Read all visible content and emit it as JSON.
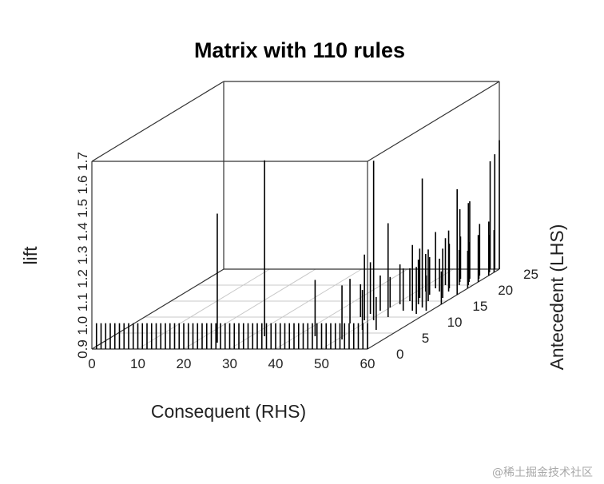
{
  "chart_data": {
    "type": "3d-bar",
    "title": "Matrix with 110 rules",
    "xlabel": "Consequent (RHS)",
    "ylabel": "Antecedent (LHS)",
    "zlabel": "lift",
    "x_ticks": [
      "0",
      "10",
      "20",
      "30",
      "40",
      "50",
      "60"
    ],
    "y_ticks": [
      "0",
      "5",
      "10",
      "15",
      "20",
      "25"
    ],
    "z_ticks": [
      "0.9",
      "1.0",
      "1.1",
      "1.2",
      "1.3",
      "1.4",
      "1.5",
      "1.6",
      "1.7"
    ],
    "xlim": [
      0,
      60
    ],
    "ylim": [
      0,
      25
    ],
    "zlim": [
      0.9,
      1.7
    ],
    "rules": [
      {
        "x": 1,
        "y": 0,
        "lift": 1.01
      },
      {
        "x": 2,
        "y": 0,
        "lift": 1.01
      },
      {
        "x": 3,
        "y": 0,
        "lift": 1.01
      },
      {
        "x": 4,
        "y": 0,
        "lift": 1.01
      },
      {
        "x": 5,
        "y": 0,
        "lift": 1.01
      },
      {
        "x": 6,
        "y": 0,
        "lift": 1.01
      },
      {
        "x": 7,
        "y": 0,
        "lift": 1.01
      },
      {
        "x": 8,
        "y": 0,
        "lift": 1.01
      },
      {
        "x": 9,
        "y": 0,
        "lift": 1.01
      },
      {
        "x": 10,
        "y": 0,
        "lift": 1.01
      },
      {
        "x": 11,
        "y": 0,
        "lift": 1.01
      },
      {
        "x": 12,
        "y": 0,
        "lift": 1.01
      },
      {
        "x": 13,
        "y": 0,
        "lift": 1.01
      },
      {
        "x": 14,
        "y": 0,
        "lift": 1.01
      },
      {
        "x": 15,
        "y": 0,
        "lift": 1.01
      },
      {
        "x": 16,
        "y": 0,
        "lift": 1.01
      },
      {
        "x": 17,
        "y": 0,
        "lift": 1.01
      },
      {
        "x": 18,
        "y": 0,
        "lift": 1.01
      },
      {
        "x": 19,
        "y": 0,
        "lift": 1.01
      },
      {
        "x": 20,
        "y": 0,
        "lift": 1.01
      },
      {
        "x": 21,
        "y": 0,
        "lift": 1.01
      },
      {
        "x": 22,
        "y": 0,
        "lift": 1.01
      },
      {
        "x": 23,
        "y": 0,
        "lift": 1.01
      },
      {
        "x": 24,
        "y": 0,
        "lift": 1.01
      },
      {
        "x": 25,
        "y": 0,
        "lift": 1.01
      },
      {
        "x": 26,
        "y": 0,
        "lift": 1.01
      },
      {
        "x": 27,
        "y": 0,
        "lift": 1.01
      },
      {
        "x": 28,
        "y": 0,
        "lift": 1.01
      },
      {
        "x": 29,
        "y": 0,
        "lift": 1.01
      },
      {
        "x": 30,
        "y": 0,
        "lift": 1.01
      },
      {
        "x": 31,
        "y": 0,
        "lift": 1.01
      },
      {
        "x": 32,
        "y": 0,
        "lift": 1.01
      },
      {
        "x": 33,
        "y": 0,
        "lift": 1.01
      },
      {
        "x": 34,
        "y": 0,
        "lift": 1.01
      },
      {
        "x": 35,
        "y": 0,
        "lift": 1.01
      },
      {
        "x": 36,
        "y": 0,
        "lift": 1.01
      },
      {
        "x": 37,
        "y": 0,
        "lift": 1.01
      },
      {
        "x": 38,
        "y": 0,
        "lift": 1.01
      },
      {
        "x": 39,
        "y": 0,
        "lift": 1.01
      },
      {
        "x": 40,
        "y": 0,
        "lift": 1.01
      },
      {
        "x": 41,
        "y": 0,
        "lift": 1.01
      },
      {
        "x": 42,
        "y": 0,
        "lift": 1.01
      },
      {
        "x": 43,
        "y": 0,
        "lift": 1.01
      },
      {
        "x": 44,
        "y": 0,
        "lift": 1.01
      },
      {
        "x": 45,
        "y": 0,
        "lift": 1.01
      },
      {
        "x": 46,
        "y": 0,
        "lift": 1.01
      },
      {
        "x": 47,
        "y": 0,
        "lift": 1.01
      },
      {
        "x": 48,
        "y": 0,
        "lift": 1.01
      },
      {
        "x": 49,
        "y": 0,
        "lift": 1.01
      },
      {
        "x": 50,
        "y": 0,
        "lift": 1.01
      },
      {
        "x": 51,
        "y": 0,
        "lift": 1.01
      },
      {
        "x": 52,
        "y": 0,
        "lift": 1.01
      },
      {
        "x": 53,
        "y": 0,
        "lift": 1.01
      },
      {
        "x": 54,
        "y": 0,
        "lift": 1.01
      },
      {
        "x": 55,
        "y": 0,
        "lift": 1.01
      },
      {
        "x": 56,
        "y": 0,
        "lift": 1.01
      },
      {
        "x": 57,
        "y": 0,
        "lift": 1.01
      },
      {
        "x": 58,
        "y": 0,
        "lift": 1.01
      },
      {
        "x": 59,
        "y": 0,
        "lift": 1.01
      },
      {
        "x": 60,
        "y": 0,
        "lift": 1.01
      },
      {
        "x": 25,
        "y": 2,
        "lift": 1.45
      },
      {
        "x": 33,
        "y": 4,
        "lift": 1.65
      },
      {
        "x": 44,
        "y": 4,
        "lift": 1.14
      },
      {
        "x": 47,
        "y": 8,
        "lift": 1.09
      },
      {
        "x": 49,
        "y": 9,
        "lift": 1.18
      },
      {
        "x": 51,
        "y": 9,
        "lift": 1.58
      },
      {
        "x": 51,
        "y": 3,
        "lift": 1.13
      },
      {
        "x": 52,
        "y": 6,
        "lift": 1.07
      },
      {
        "x": 53,
        "y": 10,
        "lift": 1.3
      },
      {
        "x": 54,
        "y": 12,
        "lift": 1.08
      },
      {
        "x": 55,
        "y": 6,
        "lift": 1.04
      },
      {
        "x": 56,
        "y": 12,
        "lift": 1.18
      },
      {
        "x": 57,
        "y": 13,
        "lift": 1.45
      },
      {
        "x": 58,
        "y": 11,
        "lift": 1.1
      },
      {
        "x": 59,
        "y": 12,
        "lift": 1.05
      },
      {
        "x": 60,
        "y": 14,
        "lift": 1.04
      },
      {
        "x": 60,
        "y": 17,
        "lift": 1.35
      },
      {
        "x": 60,
        "y": 19,
        "lift": 1.06
      },
      {
        "x": 58,
        "y": 16,
        "lift": 1.11
      },
      {
        "x": 57,
        "y": 18,
        "lift": 1.16
      },
      {
        "x": 56,
        "y": 15,
        "lift": 1.12
      },
      {
        "x": 55,
        "y": 14,
        "lift": 1.09
      },
      {
        "x": 59,
        "y": 20,
        "lift": 1.25
      },
      {
        "x": 60,
        "y": 21,
        "lift": 1.1
      },
      {
        "x": 56,
        "y": 21,
        "lift": 1.21
      },
      {
        "x": 57,
        "y": 22,
        "lift": 1.23
      },
      {
        "x": 58,
        "y": 23,
        "lift": 1.12
      },
      {
        "x": 59,
        "y": 24,
        "lift": 1.06
      },
      {
        "x": 60,
        "y": 24,
        "lift": 1.08
      },
      {
        "x": 58,
        "y": 25,
        "lift": 1.36
      },
      {
        "x": 59,
        "y": 25,
        "lift": 1.39
      },
      {
        "x": 60,
        "y": 25,
        "lift": 1.45
      },
      {
        "x": 60,
        "y": 23,
        "lift": 1.13
      },
      {
        "x": 59,
        "y": 22,
        "lift": 1.04
      },
      {
        "x": 58,
        "y": 21,
        "lift": 1.07
      },
      {
        "x": 57,
        "y": 20,
        "lift": 1.05
      },
      {
        "x": 56,
        "y": 19,
        "lift": 1.09
      },
      {
        "x": 55,
        "y": 18,
        "lift": 1.04
      },
      {
        "x": 54,
        "y": 17,
        "lift": 1.06
      },
      {
        "x": 53,
        "y": 16,
        "lift": 1.11
      },
      {
        "x": 52,
        "y": 15,
        "lift": 1.04
      },
      {
        "x": 51,
        "y": 14,
        "lift": 1.07
      },
      {
        "x": 50,
        "y": 13,
        "lift": 1.03
      },
      {
        "x": 49,
        "y": 12,
        "lift": 1.05
      },
      {
        "x": 48,
        "y": 11,
        "lift": 1.12
      },
      {
        "x": 47,
        "y": 10,
        "lift": 1.04
      },
      {
        "x": 55,
        "y": 22,
        "lift": 1.08
      },
      {
        "x": 54,
        "y": 20,
        "lift": 1.1
      },
      {
        "x": 53,
        "y": 19,
        "lift": 1.14
      },
      {
        "x": 52,
        "y": 18,
        "lift": 1.06
      }
    ]
  },
  "watermark": "@稀土掘金技术社区"
}
